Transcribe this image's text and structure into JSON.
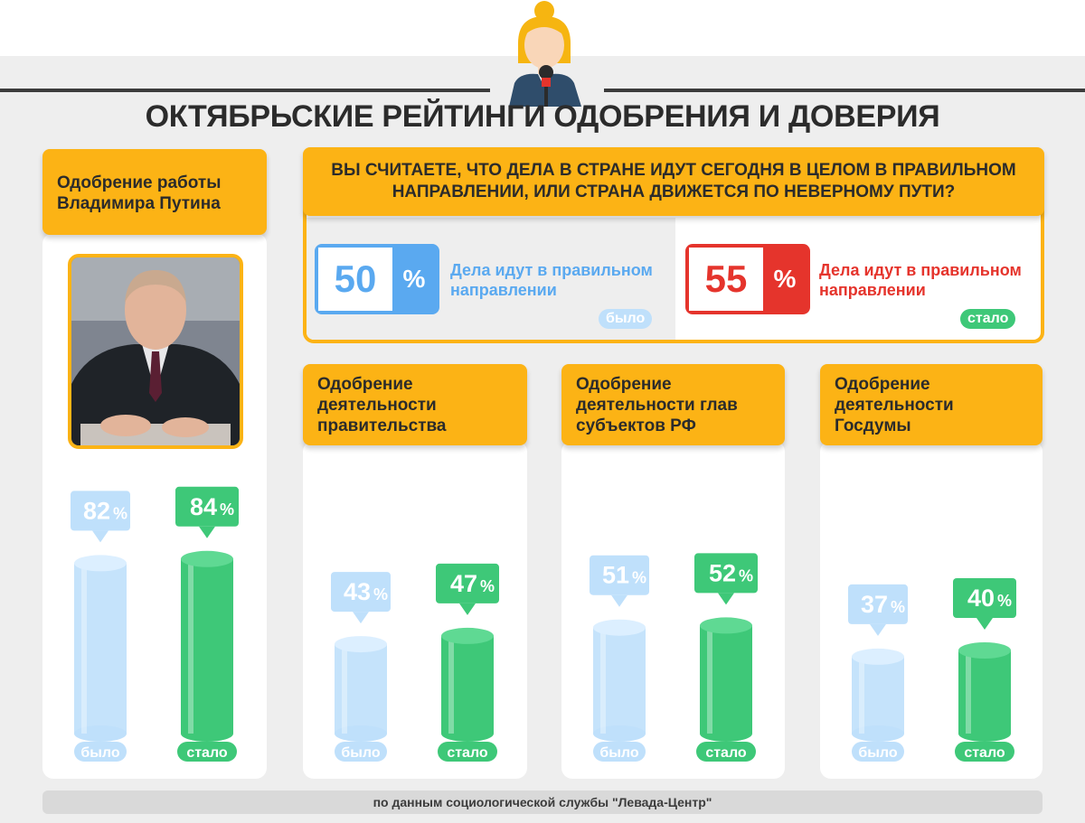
{
  "title": "ОКТЯБРЬСКИЕ РЕЙТИНГИ ОДОБРЕНИЯ И ДОВЕРИЯ",
  "colors": {
    "accent": "#fcb315",
    "before": "#bfe0fb",
    "before_text": "#ffffff",
    "after": "#3ec878",
    "negative": "#e5342c",
    "positive": "#5aa9f0"
  },
  "question": {
    "text": "ВЫ СЧИТАЕТЕ, ЧТО ДЕЛА В СТРАНЕ ИДУТ СЕГОДНЯ В ЦЕЛОМ В ПРАВИЛЬНОМ НАПРАВЛЕНИИ, ИЛИ СТРАНА ДВИЖЕТСЯ ПО НЕВЕРНОМУ ПУТИ?",
    "before": {
      "value": "50",
      "sign": "%",
      "label": "Дела идут в правильном направлении",
      "tag": "было"
    },
    "after": {
      "value": "55",
      "sign": "%",
      "label": "Дела идут в правильном направлении",
      "tag": "стало"
    }
  },
  "chart_data": [
    {
      "type": "bar",
      "title": "Одобрение работы Владимира Путина",
      "categories": [
        "было",
        "стало"
      ],
      "values": [
        82,
        84
      ],
      "labels": [
        "82",
        "84"
      ],
      "unit": "%"
    },
    {
      "type": "bar",
      "title": "Одобрение деятельности правительства",
      "categories": [
        "было",
        "стало"
      ],
      "values": [
        43,
        47
      ],
      "labels": [
        "43",
        "47"
      ],
      "unit": "%"
    },
    {
      "type": "bar",
      "title": "Одобрение деятельности глав субъектов РФ",
      "categories": [
        "было",
        "стало"
      ],
      "values": [
        51,
        52
      ],
      "labels": [
        "51",
        "52"
      ],
      "unit": "%"
    },
    {
      "type": "bar",
      "title": "Одобрение деятельности Госдумы",
      "categories": [
        "было",
        "стало"
      ],
      "values": [
        37,
        40
      ],
      "labels": [
        "37",
        "40"
      ],
      "unit": "%"
    }
  ],
  "footer": "по данным социологической службы \"Левада-Центр\""
}
